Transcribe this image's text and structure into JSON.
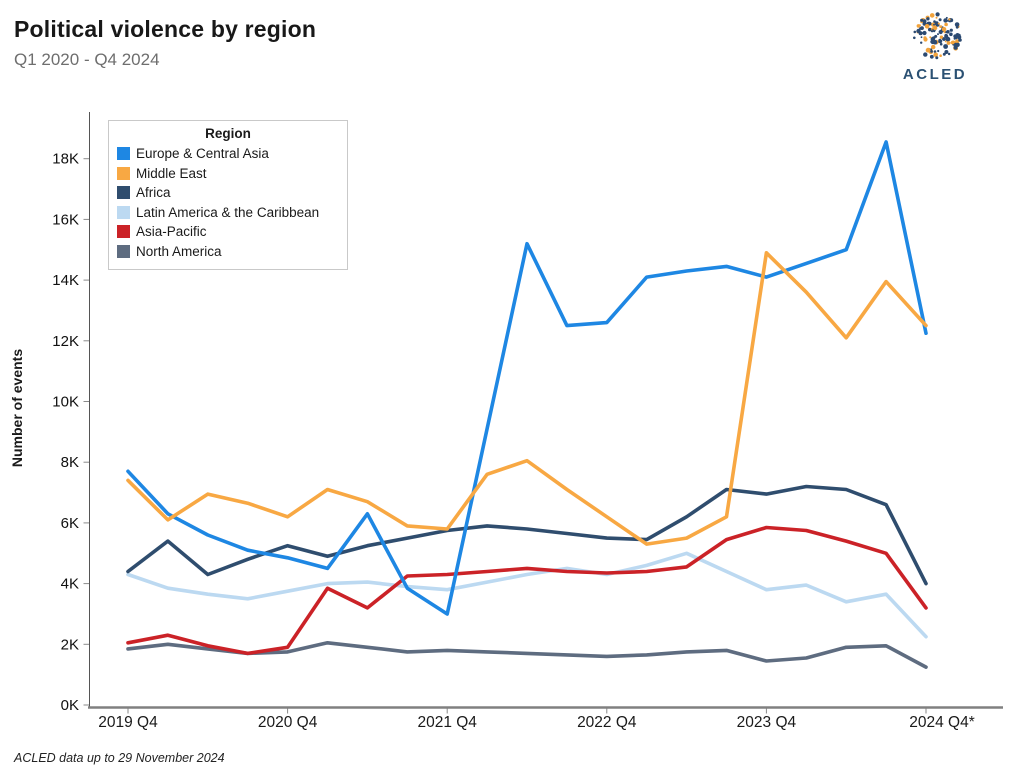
{
  "header": {
    "title": "Political violence by region",
    "subtitle": "Q1 2020 - Q4 2024",
    "logo_text": "ACLED"
  },
  "footer": {
    "note": "ACLED data up to 29 November 2024"
  },
  "chart_data": {
    "type": "line",
    "title": "Political violence by region",
    "subtitle": "Q1 2020 - Q4 2024",
    "ylabel": "Number of events",
    "legend_title": "Region",
    "legend_position": "top-left-inside",
    "grid": "off",
    "ylim": [
      0,
      19600
    ],
    "y_tick_step": 2000,
    "y_tick_labels": [
      "0K",
      "2K",
      "4K",
      "6K",
      "8K",
      "10K",
      "12K",
      "14K",
      "16K",
      "18K"
    ],
    "x_tick_indices": [
      0,
      4,
      8,
      12,
      16,
      20
    ],
    "x_tick_labels": [
      "2019 Q4",
      "2020 Q4",
      "2021 Q4",
      "2022 Q4",
      "2023 Q4",
      "2024 Q4*"
    ],
    "categories": [
      "2019 Q4",
      "2020 Q1",
      "2020 Q2",
      "2020 Q3",
      "2020 Q4",
      "2021 Q1",
      "2021 Q2",
      "2021 Q3",
      "2021 Q4",
      "2022 Q1",
      "2022 Q2",
      "2022 Q3",
      "2022 Q4",
      "2023 Q1",
      "2023 Q2",
      "2023 Q3",
      "2023 Q4",
      "2024 Q1",
      "2024 Q2",
      "2024 Q3",
      "2024 Q4"
    ],
    "series": [
      {
        "name": "Europe & Central Asia",
        "color": "#1E87E3",
        "values": [
          7700,
          6300,
          5600,
          5100,
          4850,
          4500,
          6300,
          3850,
          3000,
          9100,
          15200,
          12500,
          12600,
          14100,
          14300,
          14450,
          14100,
          14550,
          15000,
          18550,
          12250
        ]
      },
      {
        "name": "Middle East",
        "color": "#F8A843",
        "values": [
          7400,
          6100,
          6950,
          6650,
          6200,
          7100,
          6700,
          5900,
          5800,
          7600,
          8050,
          7100,
          6200,
          5300,
          5500,
          6200,
          14900,
          13600,
          12100,
          13950,
          12500
        ]
      },
      {
        "name": "Africa",
        "color": "#2F4D6E",
        "values": [
          4400,
          5400,
          4300,
          4800,
          5250,
          4900,
          5250,
          5500,
          5750,
          5900,
          5800,
          5650,
          5500,
          5450,
          6200,
          7100,
          6950,
          7200,
          7100,
          6600,
          4000
        ]
      },
      {
        "name": "Latin America & the Caribbean",
        "color": "#BCD9F1",
        "values": [
          4300,
          3850,
          3650,
          3500,
          3750,
          4000,
          4050,
          3900,
          3800,
          4050,
          4300,
          4500,
          4300,
          4600,
          5000,
          4400,
          3800,
          3950,
          3400,
          3650,
          2250
        ]
      },
      {
        "name": "Asia-Pacific",
        "color": "#CB2227",
        "values": [
          2050,
          2300,
          1950,
          1700,
          1900,
          3850,
          3200,
          4250,
          4300,
          4400,
          4500,
          4400,
          4350,
          4400,
          4550,
          5450,
          5850,
          5750,
          5400,
          5000,
          3200
        ]
      },
      {
        "name": "North America",
        "color": "#5E6C80",
        "values": [
          1850,
          2000,
          1850,
          1700,
          1750,
          2050,
          1900,
          1750,
          1800,
          1750,
          1700,
          1650,
          1600,
          1650,
          1750,
          1800,
          1450,
          1550,
          1900,
          1950,
          1250
        ]
      }
    ]
  }
}
